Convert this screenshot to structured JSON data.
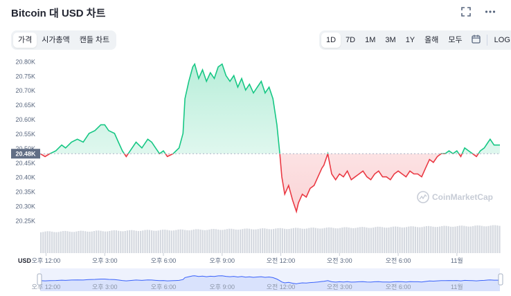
{
  "header": {
    "title": "Bitcoin 대 USD 차트"
  },
  "icons": {
    "fullscreen": "fullscreen-icon",
    "more": "more-dots-icon",
    "calendar": "calendar-icon",
    "watermark": "coinmarketcap-logo-icon"
  },
  "chart_tabs": [
    {
      "label": "가격",
      "active": true
    },
    {
      "label": "시가총액",
      "active": false
    },
    {
      "label": "캔들 차트",
      "active": false
    }
  ],
  "ranges": [
    {
      "label": "1D",
      "active": true
    },
    {
      "label": "7D",
      "active": false
    },
    {
      "label": "1M",
      "active": false
    },
    {
      "label": "3M",
      "active": false
    },
    {
      "label": "1Y",
      "active": false
    },
    {
      "label": "올해",
      "active": false
    },
    {
      "label": "모두",
      "active": false
    }
  ],
  "log_label": "LOG",
  "watermark": "CoinMarketCap",
  "colors": {
    "up": "#16c784",
    "down": "#ea3943",
    "label_bg": "#616e85",
    "nav_line": "#3861fb"
  },
  "chart_data": {
    "type": "line",
    "currency_label": "USD",
    "reference_value": 20.48,
    "reference_label": "20.48K",
    "y_unit": "K USD",
    "ylim": [
      20.22,
      20.82
    ],
    "y_ticks": [
      {
        "v": 20.8,
        "label": "20.80K"
      },
      {
        "v": 20.75,
        "label": "20.75K"
      },
      {
        "v": 20.7,
        "label": "20.70K"
      },
      {
        "v": 20.65,
        "label": "20.65K"
      },
      {
        "v": 20.6,
        "label": "20.60K"
      },
      {
        "v": 20.55,
        "label": "20.55K"
      },
      {
        "v": 20.5,
        "label": "20.50K"
      },
      {
        "v": 20.45,
        "label": "20.45K"
      },
      {
        "v": 20.4,
        "label": "20.40K"
      },
      {
        "v": 20.35,
        "label": "20.35K"
      },
      {
        "v": 20.3,
        "label": "20.30K"
      },
      {
        "v": 20.25,
        "label": "20.25K"
      }
    ],
    "x_unit": "hours since 오후 12:00",
    "xlim": [
      -0.3,
      23.2
    ],
    "x_ticks": [
      {
        "t": 0,
        "label": "오후 12:00"
      },
      {
        "t": 3,
        "label": "오후 3:00"
      },
      {
        "t": 6,
        "label": "오후 6:00"
      },
      {
        "t": 9,
        "label": "오후 9:00"
      },
      {
        "t": 12,
        "label": "오전 12:00"
      },
      {
        "t": 15,
        "label": "오전 3:00"
      },
      {
        "t": 18,
        "label": "오전 6:00"
      },
      {
        "t": 21,
        "label": "11월"
      }
    ],
    "series": [
      {
        "values": [
          [
            -0.3,
            20.48
          ],
          [
            -0.05,
            20.47
          ],
          [
            0.2,
            20.48
          ],
          [
            0.5,
            20.49
          ],
          [
            0.8,
            20.51
          ],
          [
            1.0,
            20.5
          ],
          [
            1.3,
            20.52
          ],
          [
            1.6,
            20.53
          ],
          [
            1.9,
            20.52
          ],
          [
            2.2,
            20.55
          ],
          [
            2.5,
            20.56
          ],
          [
            2.8,
            20.58
          ],
          [
            3.0,
            20.58
          ],
          [
            3.2,
            20.56
          ],
          [
            3.5,
            20.55
          ],
          [
            3.7,
            20.52
          ],
          [
            3.9,
            20.49
          ],
          [
            4.1,
            20.47
          ],
          [
            4.3,
            20.49
          ],
          [
            4.6,
            20.52
          ],
          [
            4.9,
            20.5
          ],
          [
            5.2,
            20.53
          ],
          [
            5.4,
            20.52
          ],
          [
            5.6,
            20.5
          ],
          [
            5.8,
            20.48
          ],
          [
            6.0,
            20.49
          ],
          [
            6.2,
            20.47
          ],
          [
            6.5,
            20.48
          ],
          [
            6.8,
            20.5
          ],
          [
            7.0,
            20.55
          ],
          [
            7.1,
            20.67
          ],
          [
            7.3,
            20.73
          ],
          [
            7.5,
            20.78
          ],
          [
            7.6,
            20.79
          ],
          [
            7.8,
            20.74
          ],
          [
            8.0,
            20.77
          ],
          [
            8.2,
            20.73
          ],
          [
            8.4,
            20.76
          ],
          [
            8.6,
            20.74
          ],
          [
            8.8,
            20.78
          ],
          [
            9.0,
            20.79
          ],
          [
            9.2,
            20.75
          ],
          [
            9.4,
            20.73
          ],
          [
            9.6,
            20.75
          ],
          [
            9.8,
            20.71
          ],
          [
            10.0,
            20.74
          ],
          [
            10.2,
            20.7
          ],
          [
            10.4,
            20.72
          ],
          [
            10.6,
            20.69
          ],
          [
            10.8,
            20.71
          ],
          [
            11.0,
            20.73
          ],
          [
            11.2,
            20.69
          ],
          [
            11.4,
            20.71
          ],
          [
            11.6,
            20.67
          ],
          [
            11.8,
            20.58
          ],
          [
            11.95,
            20.48
          ],
          [
            12.05,
            20.4
          ],
          [
            12.2,
            20.34
          ],
          [
            12.4,
            20.37
          ],
          [
            12.6,
            20.32
          ],
          [
            12.8,
            20.28
          ],
          [
            12.9,
            20.31
          ],
          [
            13.1,
            20.34
          ],
          [
            13.3,
            20.33
          ],
          [
            13.5,
            20.36
          ],
          [
            13.7,
            20.37
          ],
          [
            13.9,
            20.4
          ],
          [
            14.1,
            20.43
          ],
          [
            14.2,
            20.44
          ],
          [
            14.4,
            20.48
          ],
          [
            14.6,
            20.41
          ],
          [
            14.8,
            20.39
          ],
          [
            15.0,
            20.41
          ],
          [
            15.2,
            20.4
          ],
          [
            15.4,
            20.42
          ],
          [
            15.6,
            20.39
          ],
          [
            15.8,
            20.4
          ],
          [
            16.0,
            20.41
          ],
          [
            16.2,
            20.42
          ],
          [
            16.4,
            20.4
          ],
          [
            16.6,
            20.39
          ],
          [
            16.8,
            20.41
          ],
          [
            17.0,
            20.42
          ],
          [
            17.2,
            20.4
          ],
          [
            17.4,
            20.4
          ],
          [
            17.6,
            20.39
          ],
          [
            17.8,
            20.41
          ],
          [
            18.0,
            20.42
          ],
          [
            18.2,
            20.41
          ],
          [
            18.4,
            20.4
          ],
          [
            18.6,
            20.42
          ],
          [
            18.8,
            20.41
          ],
          [
            19.0,
            20.41
          ],
          [
            19.2,
            20.4
          ],
          [
            19.4,
            20.43
          ],
          [
            19.6,
            20.46
          ],
          [
            19.8,
            20.45
          ],
          [
            20.0,
            20.47
          ],
          [
            20.2,
            20.48
          ],
          [
            20.4,
            20.48
          ],
          [
            20.6,
            20.49
          ],
          [
            20.8,
            20.48
          ],
          [
            21.0,
            20.49
          ],
          [
            21.2,
            20.47
          ],
          [
            21.4,
            20.5
          ],
          [
            21.6,
            20.49
          ],
          [
            21.8,
            20.48
          ],
          [
            22.0,
            20.47
          ],
          [
            22.2,
            20.49
          ],
          [
            22.4,
            20.5
          ],
          [
            22.6,
            20.52
          ],
          [
            22.7,
            20.53
          ],
          [
            22.9,
            20.51
          ],
          [
            23.2,
            20.51
          ]
        ]
      }
    ]
  }
}
